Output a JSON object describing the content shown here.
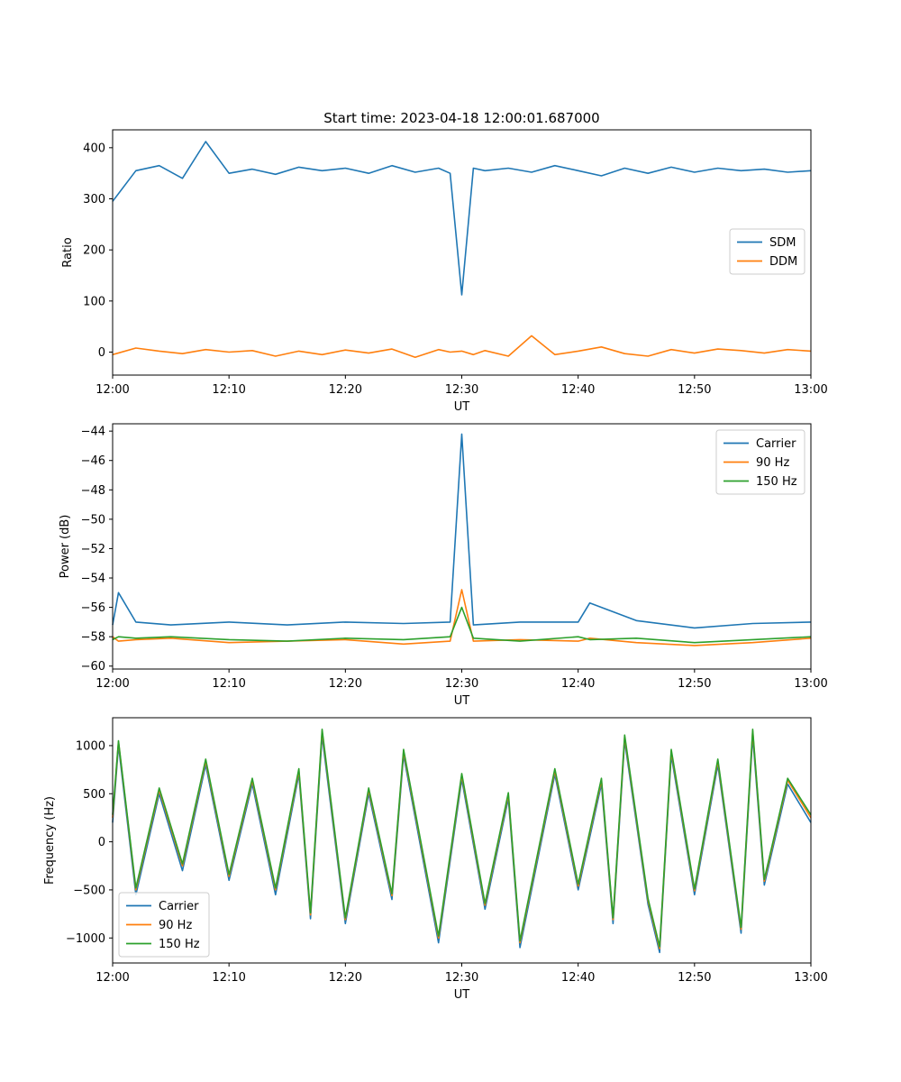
{
  "figure": {
    "title": "Start time: 2023-04-18 12:00:01.687000"
  },
  "colors": {
    "blue": "#1f77b4",
    "orange": "#ff7f0e",
    "green": "#2ca02c"
  },
  "chart_data": [
    {
      "type": "line",
      "xlabel": "UT",
      "ylabel": "Ratio",
      "xlim": [
        "12:00",
        "13:00"
      ],
      "ylim": [
        -45,
        435
      ],
      "x_ticks": [
        "12:00",
        "12:10",
        "12:20",
        "12:30",
        "12:40",
        "12:50",
        "13:00"
      ],
      "y_ticks": [
        0,
        100,
        200,
        300,
        400
      ],
      "grid": false,
      "legend_position": "center-right",
      "x": [
        "12:00",
        "12:02",
        "12:04",
        "12:06",
        "12:08",
        "12:10",
        "12:12",
        "12:14",
        "12:16",
        "12:18",
        "12:20",
        "12:22",
        "12:24",
        "12:26",
        "12:28",
        "12:29",
        "12:30",
        "12:31",
        "12:32",
        "12:34",
        "12:36",
        "12:38",
        "12:40",
        "12:42",
        "12:44",
        "12:46",
        "12:48",
        "12:50",
        "12:52",
        "12:54",
        "12:56",
        "12:58",
        "13:00"
      ],
      "series": [
        {
          "name": "SDM",
          "color": "#1f77b4",
          "values": [
            295,
            355,
            365,
            340,
            412,
            350,
            358,
            348,
            362,
            355,
            360,
            350,
            365,
            352,
            360,
            350,
            112,
            360,
            355,
            360,
            352,
            365,
            355,
            345,
            360,
            350,
            362,
            352,
            360,
            355,
            358,
            352,
            355
          ]
        },
        {
          "name": "DDM",
          "color": "#ff7f0e",
          "values": [
            -5,
            8,
            2,
            -3,
            5,
            0,
            3,
            -8,
            2,
            -5,
            4,
            -2,
            6,
            -10,
            5,
            0,
            2,
            -5,
            3,
            -8,
            32,
            -5,
            2,
            10,
            -3,
            -8,
            5,
            -2,
            6,
            3,
            -2,
            5,
            2
          ]
        }
      ]
    },
    {
      "type": "line",
      "xlabel": "UT",
      "ylabel": "Power (dB)",
      "xlim": [
        "12:00",
        "13:00"
      ],
      "ylim": [
        -60.2,
        -43.5
      ],
      "x_ticks": [
        "12:00",
        "12:10",
        "12:20",
        "12:30",
        "12:40",
        "12:50",
        "13:00"
      ],
      "y_ticks": [
        -60,
        -58,
        -56,
        -54,
        -52,
        -50,
        -48,
        -46,
        -44
      ],
      "grid": false,
      "legend_position": "top-right",
      "x": [
        "12:00",
        "12:00.5",
        "12:02",
        "12:05",
        "12:10",
        "12:15",
        "12:20",
        "12:25",
        "12:29",
        "12:30",
        "12:31",
        "12:35",
        "12:40",
        "12:41",
        "12:45",
        "12:50",
        "12:55",
        "13:00"
      ],
      "series": [
        {
          "name": "Carrier",
          "color": "#1f77b4",
          "values": [
            -57.2,
            -55.0,
            -57.0,
            -57.2,
            -57.0,
            -57.2,
            -57.0,
            -57.1,
            -57.0,
            -44.2,
            -57.2,
            -57.0,
            -57.0,
            -55.7,
            -56.9,
            -57.4,
            -57.1,
            -57.0
          ]
        },
        {
          "name": "90 Hz",
          "color": "#ff7f0e",
          "values": [
            -58.0,
            -58.3,
            -58.2,
            -58.1,
            -58.4,
            -58.3,
            -58.2,
            -58.5,
            -58.3,
            -54.8,
            -58.3,
            -58.2,
            -58.3,
            -58.1,
            -58.4,
            -58.6,
            -58.4,
            -58.1
          ]
        },
        {
          "name": "150 Hz",
          "color": "#2ca02c",
          "values": [
            -58.2,
            -58.0,
            -58.1,
            -58.0,
            -58.2,
            -58.3,
            -58.1,
            -58.2,
            -58.0,
            -56.0,
            -58.1,
            -58.3,
            -58.0,
            -58.2,
            -58.1,
            -58.4,
            -58.2,
            -58.0
          ]
        }
      ]
    },
    {
      "type": "line",
      "xlabel": "UT",
      "ylabel": "Frequency (Hz)",
      "xlim": [
        "12:00",
        "13:00"
      ],
      "ylim": [
        -1260,
        1290
      ],
      "x_ticks": [
        "12:00",
        "12:10",
        "12:20",
        "12:30",
        "12:40",
        "12:50",
        "13:00"
      ],
      "y_ticks": [
        -1000,
        -500,
        0,
        500,
        1000
      ],
      "grid": false,
      "legend_position": "bottom-left",
      "x": [
        "12:00",
        "12:00.5",
        "12:02",
        "12:04",
        "12:06",
        "12:08",
        "12:10",
        "12:12",
        "12:14",
        "12:16",
        "12:17",
        "12:18",
        "12:20",
        "12:22",
        "12:24",
        "12:25",
        "12:28",
        "12:30",
        "12:32",
        "12:34",
        "12:35",
        "12:38",
        "12:40",
        "12:42",
        "12:43",
        "12:44",
        "12:46",
        "12:47",
        "12:48",
        "12:50",
        "12:52",
        "12:54",
        "12:55",
        "12:56",
        "12:58",
        "13:00"
      ],
      "series": [
        {
          "name": "Carrier",
          "color": "#1f77b4",
          "values": [
            200,
            1000,
            -550,
            500,
            -300,
            800,
            -400,
            600,
            -550,
            700,
            -800,
            1100,
            -850,
            500,
            -600,
            900,
            -1050,
            650,
            -700,
            450,
            -1100,
            700,
            -500,
            600,
            -850,
            1050,
            -650,
            -1150,
            900,
            -550,
            800,
            -950,
            1100,
            -450,
            600,
            200
          ]
        },
        {
          "name": "90 Hz",
          "color": "#ff7f0e",
          "values": [
            250,
            1040,
            -500,
            540,
            -250,
            840,
            -360,
            640,
            -500,
            740,
            -760,
            1150,
            -810,
            540,
            -560,
            940,
            -1000,
            690,
            -660,
            490,
            -1050,
            740,
            -460,
            640,
            -810,
            1090,
            -610,
            -1110,
            940,
            -510,
            840,
            -910,
            1150,
            -410,
            640,
            250
          ]
        },
        {
          "name": "150 Hz",
          "color": "#2ca02c",
          "values": [
            280,
            1050,
            -480,
            560,
            -230,
            860,
            -340,
            660,
            -480,
            760,
            -740,
            1170,
            -790,
            560,
            -540,
            960,
            -980,
            710,
            -640,
            510,
            -1030,
            760,
            -440,
            660,
            -790,
            1110,
            -590,
            -1090,
            960,
            -490,
            860,
            -890,
            1170,
            -390,
            660,
            280
          ]
        }
      ]
    }
  ]
}
